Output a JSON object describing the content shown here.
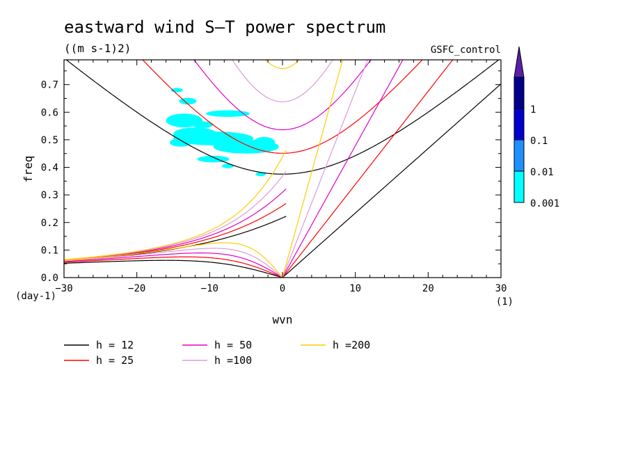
{
  "chart_data": {
    "type": "contour",
    "title": "eastward wind S–T power spectrum",
    "subtitle": "((m s-1)2)",
    "run_label": "GSFC_control",
    "xlabel": "wvn",
    "ylabel": "freq",
    "x_unit": "(1)",
    "y_unit": "(day-1)",
    "xlim": [
      -30,
      30
    ],
    "ylim": [
      0,
      0.79
    ],
    "x_ticks": [
      -30,
      -20,
      -10,
      0,
      10,
      20,
      30
    ],
    "x_tick_labels": [
      "−30",
      "−20",
      "−10",
      "0",
      "10",
      "20",
      "30"
    ],
    "y_ticks": [
      0,
      0.1,
      0.2,
      0.3,
      0.4,
      0.5,
      0.6,
      0.7
    ],
    "y_tick_labels": [
      "0.0",
      "0.1",
      "0.2",
      "0.3",
      "0.4",
      "0.5",
      "0.6",
      "0.7"
    ],
    "colorbar": {
      "levels": [
        "0.001",
        "0.01",
        "0.1",
        "1"
      ],
      "colors": [
        "#00ffff",
        "#1e90ff",
        "#0000cd",
        "#00008b",
        "#5a1fa8"
      ]
    },
    "shaded_region": {
      "level": "0.001",
      "color": "#00ffff",
      "approx_wvn_range": [
        -16,
        -2
      ],
      "approx_freq_range": [
        0.37,
        0.69
      ]
    },
    "dispersion_curves": [
      {
        "name": "h = 12",
        "h": 12,
        "color": "#000000"
      },
      {
        "name": "h = 25",
        "h": 25,
        "color": "#ff0000"
      },
      {
        "name": "h = 50",
        "h": 50,
        "color": "#e000c8"
      },
      {
        "name": "h =100",
        "h": 100,
        "color": "#dd99dd"
      },
      {
        "name": "h =200",
        "h": 200,
        "color": "#ffcc00"
      }
    ],
    "legend_placement": "bottom"
  }
}
